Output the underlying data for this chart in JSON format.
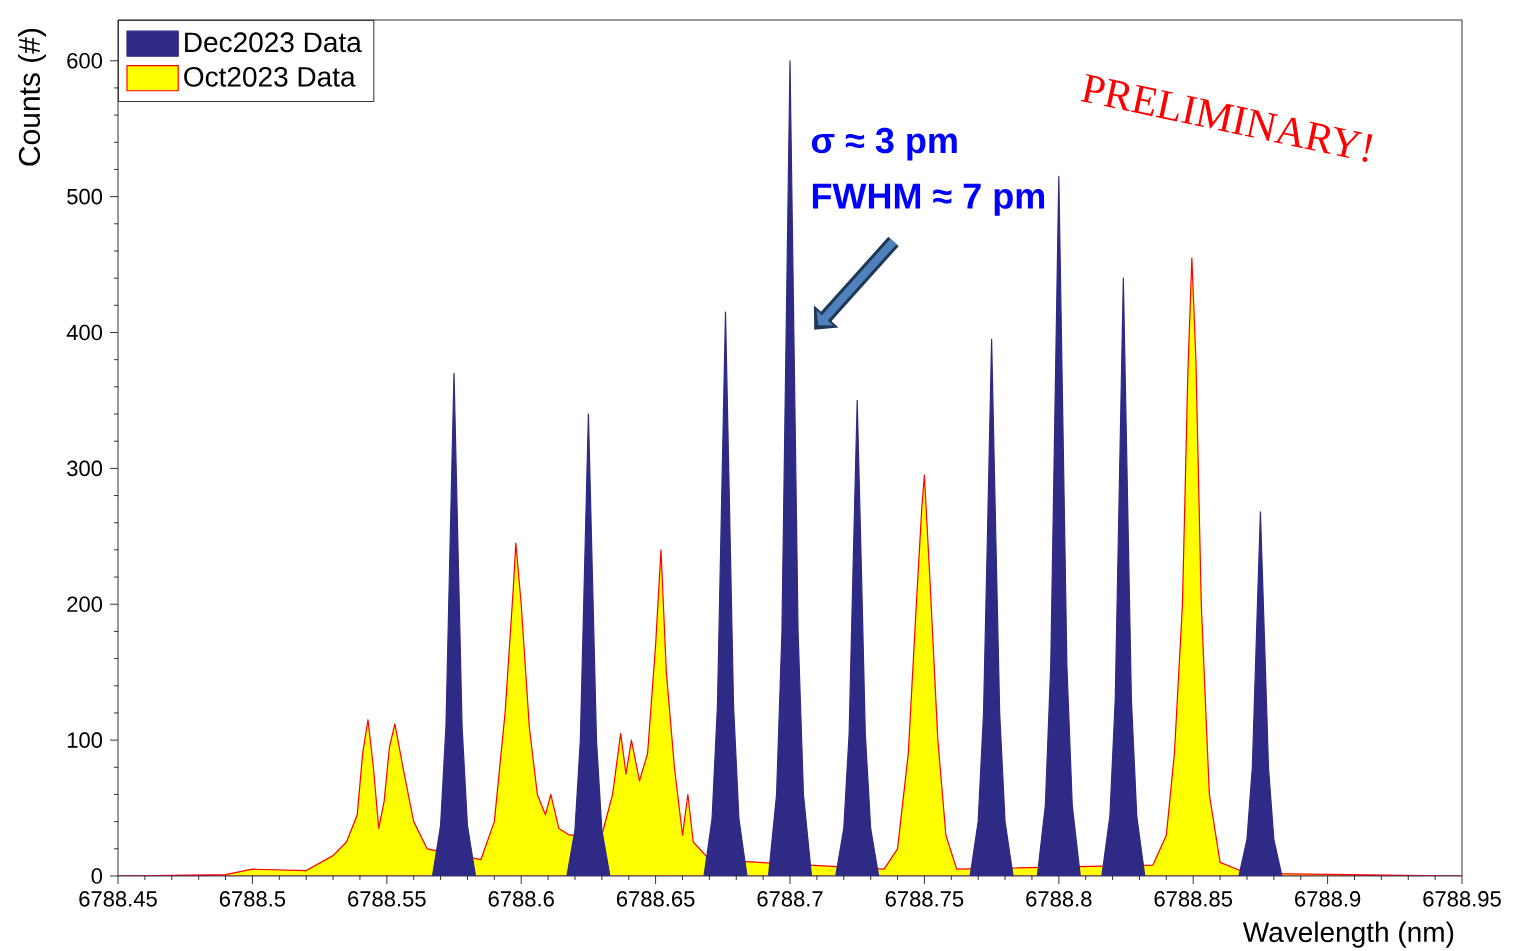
{
  "chart_data": {
    "type": "area",
    "xlabel": "Wavelength (nm)",
    "ylabel": "Counts (#)",
    "xlim": [
      6788.45,
      6788.95
    ],
    "ylim": [
      0,
      630
    ],
    "xticks": [
      6788.45,
      6788.5,
      6788.55,
      6788.6,
      6788.65,
      6788.7,
      6788.75,
      6788.8,
      6788.85,
      6788.9,
      6788.95
    ],
    "yticks": [
      0,
      100,
      200,
      300,
      400,
      500,
      600
    ],
    "legend": "top left",
    "annotations": [
      "σ ≈ 3 pm",
      "FWHM ≈ 7 pm",
      "PRELIMINARY!"
    ],
    "series": [
      {
        "name": "Dec2023 Data",
        "color": "#2e2a86",
        "x": [
          6788.45,
          6788.567,
          6788.57,
          6788.572,
          6788.5735,
          6788.575,
          6788.5765,
          6788.578,
          6788.58,
          6788.583,
          6788.617,
          6788.62,
          6788.622,
          6788.6235,
          6788.625,
          6788.6265,
          6788.628,
          6788.63,
          6788.633,
          6788.668,
          6788.671,
          6788.673,
          6788.6745,
          6788.676,
          6788.6775,
          6788.679,
          6788.681,
          6788.684,
          6788.692,
          6788.695,
          6788.697,
          6788.6985,
          6788.7,
          6788.7015,
          6788.703,
          6788.705,
          6788.708,
          6788.717,
          6788.72,
          6788.722,
          6788.7235,
          6788.725,
          6788.7265,
          6788.728,
          6788.73,
          6788.733,
          6788.767,
          6788.77,
          6788.772,
          6788.7735,
          6788.775,
          6788.7765,
          6788.778,
          6788.78,
          6788.783,
          6788.792,
          6788.795,
          6788.797,
          6788.7985,
          6788.8,
          6788.8015,
          6788.803,
          6788.805,
          6788.808,
          6788.816,
          6788.819,
          6788.821,
          6788.8225,
          6788.824,
          6788.8255,
          6788.827,
          6788.829,
          6788.832,
          6788.867,
          6788.87,
          6788.872,
          6788.8735,
          6788.875,
          6788.8765,
          6788.878,
          6788.88,
          6788.883,
          6788.95
        ],
        "values": [
          0,
          0,
          37,
          110,
          240,
          370,
          240,
          110,
          37,
          0,
          0,
          34,
          100,
          220,
          340,
          220,
          100,
          34,
          0,
          0,
          42,
          125,
          270,
          415,
          270,
          125,
          42,
          0,
          0,
          60,
          180,
          390,
          600,
          390,
          180,
          60,
          0,
          0,
          35,
          105,
          230,
          350,
          230,
          105,
          35,
          0,
          0,
          40,
          120,
          255,
          395,
          255,
          120,
          40,
          0,
          0,
          52,
          155,
          335,
          515,
          335,
          155,
          52,
          0,
          0,
          44,
          130,
          285,
          440,
          285,
          130,
          44,
          0,
          0,
          27,
          80,
          175,
          268,
          175,
          80,
          27,
          0,
          0
        ]
      },
      {
        "name": "Oct2023 Data",
        "color": "#ffff00",
        "x": [
          6788.45,
          6788.49,
          6788.5,
          6788.52,
          6788.53,
          6788.535,
          6788.539,
          6788.541,
          6788.543,
          6788.545,
          6788.547,
          6788.549,
          6788.551,
          6788.553,
          6788.556,
          6788.56,
          6788.565,
          6788.57,
          6788.58,
          6788.585,
          6788.59,
          6788.594,
          6788.597,
          6788.598,
          6788.6,
          6788.603,
          6788.606,
          6788.609,
          6788.611,
          6788.614,
          6788.618,
          6788.625,
          6788.63,
          6788.634,
          6788.637,
          6788.639,
          6788.641,
          6788.644,
          6788.647,
          6788.65,
          6788.652,
          6788.654,
          6788.657,
          6788.66,
          6788.662,
          6788.664,
          6788.67,
          6788.68,
          6788.7,
          6788.735,
          6788.74,
          6788.744,
          6788.747,
          6788.749,
          6788.75,
          6788.752,
          6788.755,
          6788.758,
          6788.762,
          6788.8,
          6788.835,
          6788.84,
          6788.843,
          6788.846,
          6788.848,
          6788.8495,
          6788.851,
          6788.853,
          6788.856,
          6788.86,
          6788.87,
          6788.95
        ],
        "values": [
          0,
          1,
          5,
          4,
          15,
          25,
          45,
          90,
          115,
          80,
          35,
          55,
          95,
          112,
          80,
          40,
          20,
          null,
          null,
          12,
          40,
          120,
          210,
          245,
          200,
          110,
          60,
          45,
          60,
          35,
          30,
          null,
          30,
          60,
          105,
          75,
          100,
          70,
          90,
          170,
          240,
          150,
          80,
          30,
          60,
          25,
          12,
          null,
          null,
          5,
          20,
          90,
          200,
          270,
          295,
          220,
          100,
          30,
          5,
          null,
          8,
          30,
          90,
          200,
          370,
          455,
          380,
          200,
          60,
          10,
          2,
          0
        ]
      }
    ]
  }
}
